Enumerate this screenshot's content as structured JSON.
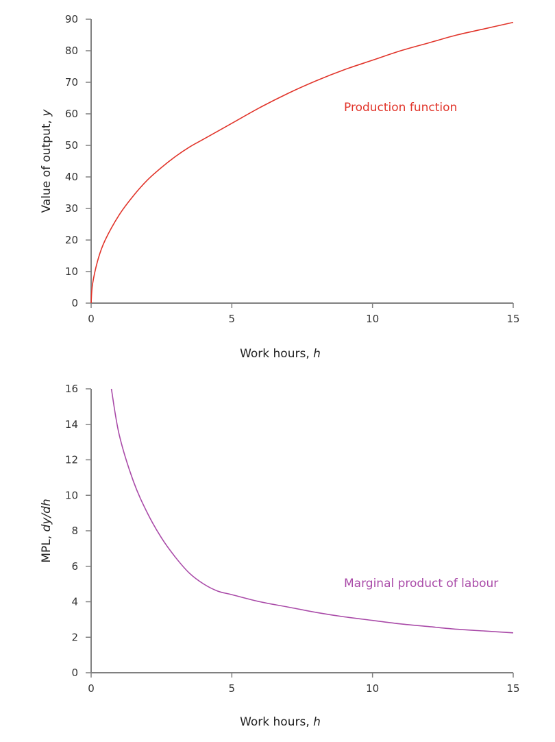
{
  "chart_data": [
    {
      "type": "line",
      "title": "",
      "xlabel": "Work hours, h",
      "ylabel": "Value of output, y",
      "xlim": [
        0,
        15
      ],
      "ylim": [
        0,
        90
      ],
      "xticks": [
        0,
        5,
        10,
        15
      ],
      "yticks": [
        0,
        10,
        20,
        30,
        40,
        50,
        60,
        70,
        80,
        90
      ],
      "grid": false,
      "series": [
        {
          "name": "Production function",
          "color": "#e1342a",
          "x": [
            0,
            0.05,
            0.25,
            0.5,
            1,
            1.5,
            2,
            2.5,
            3,
            3.5,
            4,
            5,
            6,
            7,
            8,
            9,
            10,
            11,
            12,
            13,
            14,
            15
          ],
          "y": [
            0,
            6,
            14,
            20,
            28,
            34,
            39,
            43,
            46.5,
            49.5,
            52,
            57,
            62,
            66.5,
            70.5,
            74,
            77,
            80,
            82.5,
            85,
            87,
            89
          ]
        }
      ],
      "annotations": [
        {
          "text": "Production function",
          "x": 9,
          "y": 62
        }
      ]
    },
    {
      "type": "line",
      "title": "",
      "xlabel": "Work hours, h",
      "ylabel": "MPL, dy/dh",
      "xlim": [
        0,
        15
      ],
      "ylim": [
        0,
        16
      ],
      "xticks": [
        0,
        5,
        10,
        15
      ],
      "yticks": [
        0,
        2,
        4,
        6,
        8,
        10,
        12,
        14,
        16
      ],
      "grid": false,
      "series": [
        {
          "name": "Marginal product of labour",
          "color": "#a94aa8",
          "x": [
            0.72,
            1,
            1.5,
            2,
            2.5,
            3,
            3.5,
            4,
            4.5,
            5,
            6,
            7,
            8,
            9,
            10,
            11,
            12,
            13,
            14,
            15
          ],
          "y": [
            16,
            13.4,
            10.8,
            9.0,
            7.6,
            6.5,
            5.6,
            5.0,
            4.6,
            4.4,
            4.0,
            3.7,
            3.4,
            3.15,
            2.95,
            2.75,
            2.6,
            2.45,
            2.35,
            2.25
          ]
        }
      ],
      "annotations": [
        {
          "text": "Marginal product of labour",
          "x": 9,
          "y": 5.1
        }
      ]
    }
  ],
  "labels": {
    "top_ylabel_prefix": "Value of output, ",
    "top_ylabel_var": "y",
    "xlabel_prefix": "Work hours, ",
    "xlabel_var": "h",
    "bottom_ylabel_prefix": "MPL, ",
    "bottom_ylabel_var": "dy/dh",
    "top_annotation": "Production function",
    "bottom_annotation": "Marginal product of labour"
  }
}
